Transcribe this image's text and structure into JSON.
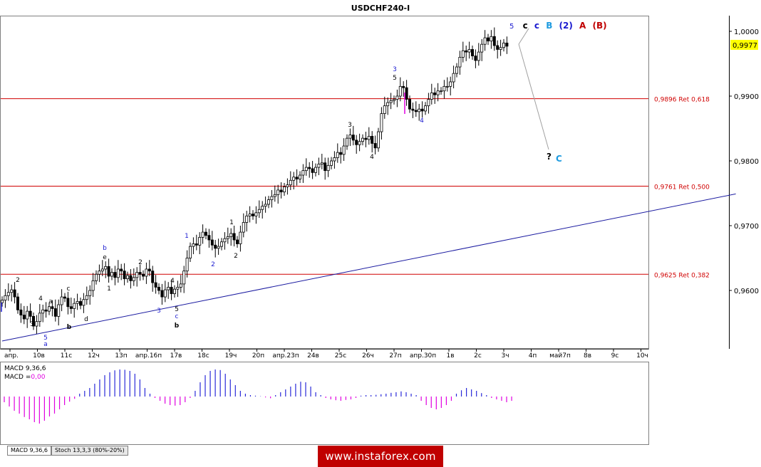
{
  "title": "USDCHF240-I",
  "price_label": "0,9977",
  "colors": {
    "candle": "#000000",
    "fib": "#d00000",
    "trendline": "#1a1aa0",
    "macd_pos": "#2a2ad8",
    "macd_neg": "#e000e0",
    "price_bg": "#ffff00",
    "wave_blue": "#1a1ad0",
    "wave_cyan": "#1e9be0",
    "wave_red": "#c00000",
    "brand_bg": "#c00000"
  },
  "indicators": {
    "macd_label": "MACD 9,36,6",
    "macd_value_prefix": "MACD =",
    "macd_value": "0,00"
  },
  "tabs": [
    "MACD 9,36,6",
    "Stoch 13,3,3 (80%-20%)"
  ],
  "brand": "www.instaforex.com",
  "wave_labels_top": [
    {
      "text": "5",
      "color": "wave_blue"
    },
    {
      "text": "c",
      "color": "black"
    },
    {
      "text": "c",
      "color": "wave_blue"
    },
    {
      "text": "B",
      "color": "wave_cyan"
    },
    {
      "text": "(2)",
      "color": "wave_blue"
    },
    {
      "text": "A",
      "color": "wave_red"
    },
    {
      "text": "(B)",
      "color": "wave_red"
    }
  ],
  "projection_label": {
    "q": "?",
    "c": "C"
  },
  "chart_data": {
    "type": "candlestick",
    "symbol": "USDCHF240-I",
    "y_ticks": [
      "1,0000",
      "0,9900",
      "0,9800",
      "0,9700",
      "0,9600"
    ],
    "y_tick_values": [
      1.0,
      0.99,
      0.98,
      0.97,
      0.96
    ],
    "ylim": [
      0.9512,
      1.0032
    ],
    "last_price": 0.9977,
    "x_ticks": [
      "апр.",
      "10в",
      "11с",
      "12ч",
      "13п",
      "апр.16п",
      "17в",
      "18с",
      "19ч",
      "20п",
      "апр.23п",
      "24в",
      "25с",
      "26ч",
      "27п",
      "апр.30п",
      "1в",
      "2с",
      "3ч",
      "4п",
      "май7п",
      "8в",
      "9с",
      "10ч"
    ],
    "fib_levels": [
      {
        "value": 0.9896,
        "label": "0,9896 Ret 0,618"
      },
      {
        "value": 0.9761,
        "label": "0,9761 Ret 0,500"
      },
      {
        "value": 0.9625,
        "label": "0,9625 Ret 0,382"
      }
    ],
    "trendline": {
      "from": [
        0,
        0.9522
      ],
      "to": [
        234,
        0.9749
      ]
    },
    "closes": [
      0.9585,
      0.9592,
      0.9597,
      0.9601,
      0.959,
      0.957,
      0.9562,
      0.9556,
      0.9568,
      0.956,
      0.9545,
      0.9552,
      0.9565,
      0.957,
      0.9568,
      0.9575,
      0.9572,
      0.956,
      0.9578,
      0.959,
      0.9588,
      0.9575,
      0.9572,
      0.958,
      0.9583,
      0.9577,
      0.9586,
      0.9592,
      0.96,
      0.9615,
      0.9625,
      0.963,
      0.9633,
      0.9637,
      0.9622,
      0.9628,
      0.962,
      0.9633,
      0.963,
      0.9618,
      0.9623,
      0.9615,
      0.962,
      0.9628,
      0.9625,
      0.9622,
      0.9633,
      0.963,
      0.9612,
      0.9605,
      0.96,
      0.959,
      0.9601,
      0.9605,
      0.9595,
      0.9602,
      0.9605,
      0.961,
      0.963,
      0.965,
      0.9668,
      0.9672,
      0.967,
      0.9682,
      0.969,
      0.9685,
      0.9678,
      0.967,
      0.9665,
      0.9668,
      0.9675,
      0.968,
      0.9683,
      0.9688,
      0.9678,
      0.9672,
      0.969,
      0.9705,
      0.9715,
      0.9718,
      0.9715,
      0.972,
      0.9725,
      0.973,
      0.9733,
      0.974,
      0.9745,
      0.9748,
      0.9755,
      0.9752,
      0.976,
      0.9763,
      0.977,
      0.9775,
      0.9772,
      0.9778,
      0.9785,
      0.979,
      0.9788,
      0.9782,
      0.979,
      0.9795,
      0.9797,
      0.9785,
      0.9793,
      0.98,
      0.9805,
      0.9813,
      0.981,
      0.9823,
      0.9835,
      0.984,
      0.9832,
      0.9825,
      0.983,
      0.9835,
      0.9833,
      0.9838,
      0.9827,
      0.982,
      0.9845,
      0.9873,
      0.9885,
      0.989,
      0.9893,
      0.9895,
      0.99,
      0.9915,
      0.9913,
      0.9895,
      0.988,
      0.9878,
      0.9876,
      0.988,
      0.9877,
      0.9885,
      0.9895,
      0.9905,
      0.9902,
      0.9908,
      0.9908,
      0.9915,
      0.9915,
      0.9922,
      0.9935,
      0.9945,
      0.996,
      0.997,
      0.9968,
      0.9972,
      0.9962,
      0.9955,
      0.9968,
      0.998,
      0.999,
      0.9985,
      0.9992,
      0.9978,
      0.9972,
      0.9975,
      0.9982,
      0.9977
    ],
    "macd": [
      -0.0002,
      -0.00035,
      -0.0005,
      -0.0006,
      -0.00072,
      -0.0008,
      -0.0009,
      -0.00095,
      -0.00085,
      -0.0007,
      -0.0006,
      -0.00045,
      -0.0003,
      -0.00018,
      -8e-05,
      0.0001,
      0.0002,
      0.0003,
      0.00045,
      0.0006,
      0.00075,
      0.00085,
      0.00092,
      0.00095,
      0.00094,
      0.0009,
      0.0008,
      0.0006,
      0.0003,
      0.0001,
      -5e-05,
      -0.00015,
      -0.00025,
      -0.0003,
      -0.00032,
      -0.0003,
      -0.0002,
      -5e-05,
      0.0002,
      0.0005,
      0.00075,
      0.0009,
      0.00095,
      0.00093,
      0.0008,
      0.0006,
      0.0004,
      0.0002,
      0.0001,
      5e-05,
      3e-05,
      1e-05,
      -3e-05,
      -6e-05,
      5e-05,
      0.00015,
      0.00025,
      0.00035,
      0.00045,
      0.00052,
      0.0005,
      0.00035,
      0.00015,
      5e-05,
      -5e-05,
      -0.0001,
      -0.00013,
      -0.00015,
      -0.00012,
      -0.0001,
      -5e-05,
      3e-05,
      5e-05,
      5e-05,
      6e-05,
      8e-05,
      0.0001,
      0.00013,
      0.00015,
      0.00018,
      0.00015,
      0.0001,
      5e-05,
      -0.00015,
      -0.0003,
      -0.0004,
      -0.00045,
      -0.0004,
      -0.0003,
      -0.00015,
      0.0001,
      0.00022,
      0.0003,
      0.00025,
      0.0002,
      0.00012,
      5e-05,
      -5e-05,
      -0.0001,
      -0.00015,
      -0.0002,
      -0.00015
    ]
  }
}
